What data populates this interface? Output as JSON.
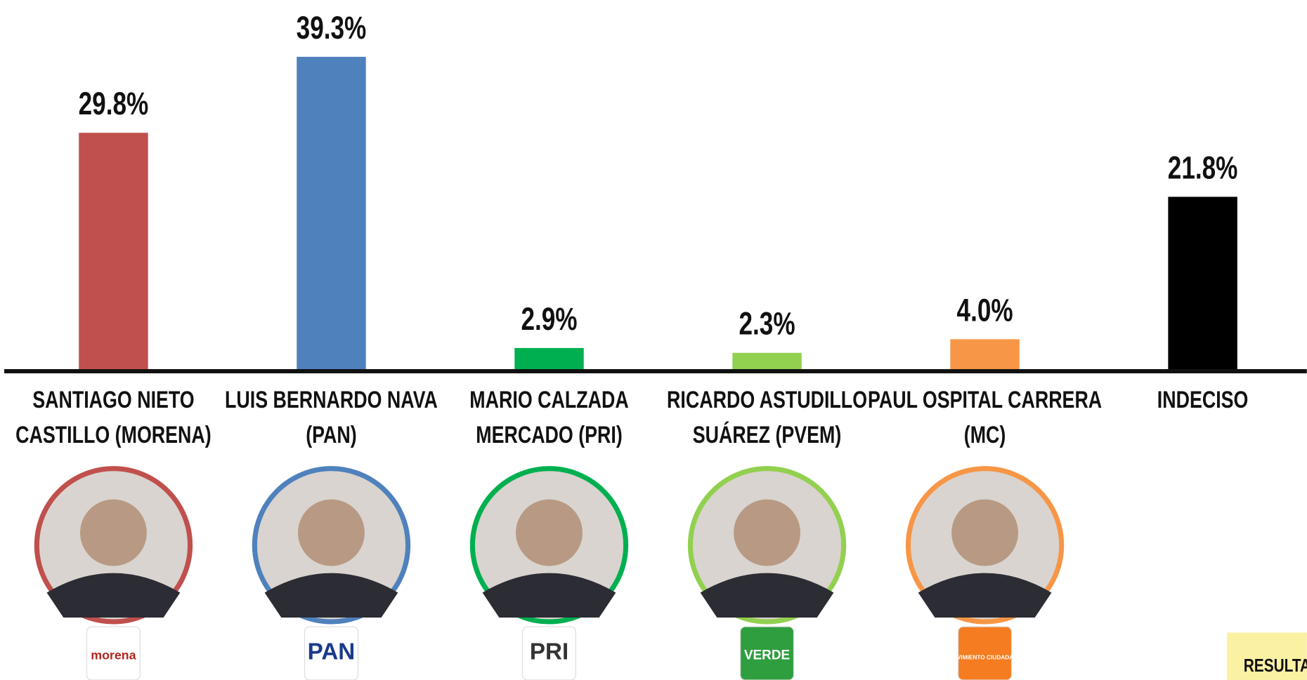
{
  "chart_data": {
    "type": "bar",
    "categories": [
      "SANTIAGO NIETO CASTILLO (MORENA)",
      "LUIS BERNARDO NAVA (PAN)",
      "MARIO CALZADA MERCADO (PRI)",
      "RICARDO ASTUDILLO SUÁREZ (PVEM)",
      "PAUL OSPITAL CARRERA (MC)",
      "INDECISO"
    ],
    "values": [
      29.8,
      39.3,
      2.9,
      2.3,
      4.0,
      21.8
    ],
    "value_labels": [
      "29.8%",
      "39.3%",
      "2.9%",
      "2.3%",
      "4.0%",
      "21.8%"
    ],
    "colors": [
      "#c0504d",
      "#4f81bd",
      "#00b050",
      "#92d050",
      "#f79646",
      "#000000"
    ],
    "ylim": [
      0,
      46.4
    ]
  },
  "logos": [
    "morena",
    "PAN",
    "PRI",
    "VERDE",
    "MOVIMIENTO CIUDADANO"
  ],
  "footer_tag": "RESULTAD"
}
